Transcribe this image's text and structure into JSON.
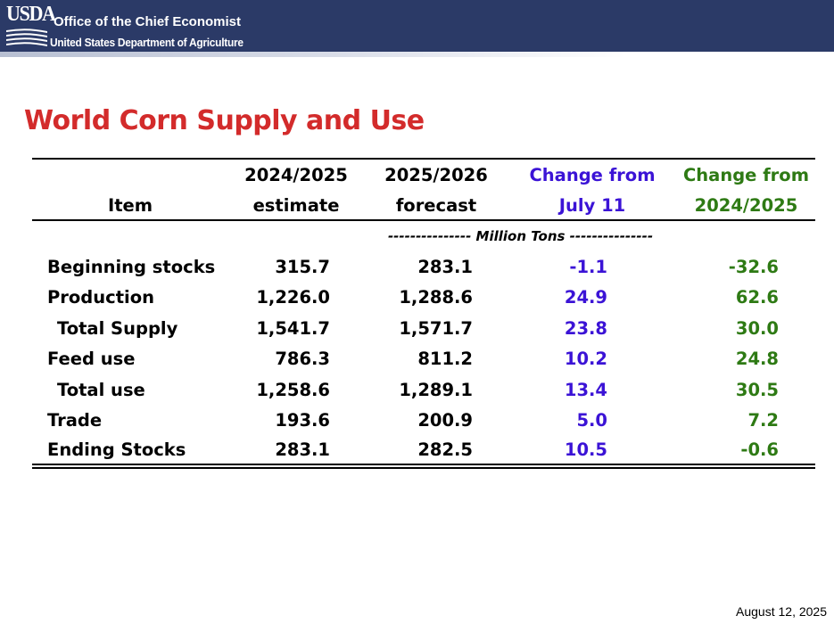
{
  "header": {
    "logo_text": "USDA",
    "office": "Office of the Chief Economist",
    "department": "United States Department of Agriculture",
    "bg_color": "#2b3a67"
  },
  "slide": {
    "title": "World Corn Supply and Use",
    "title_color": "#d32b2b",
    "date": "August 12, 2025"
  },
  "table": {
    "headers": {
      "item": "Item",
      "col1_line1": "2024/2025",
      "col1_line2": "estimate",
      "col2_line1": "2025/2026",
      "col2_line2": "forecast",
      "col3_line1": "Change from",
      "col3_line2": "July 11",
      "col4_line1": "Change from",
      "col4_line2": "2024/2025"
    },
    "units": "--------------- Million Tons ---------------",
    "colors": {
      "change_july": "#3b13d6",
      "change_prior": "#2e7a14"
    },
    "rows": [
      {
        "label": "Beginning stocks",
        "est": "315.7",
        "fcst": "283.1",
        "chg_july": "-1.1",
        "chg_prior": "-32.6"
      },
      {
        "label": "Production",
        "est": "1,226.0",
        "fcst": "1,288.6",
        "chg_july": "24.9",
        "chg_prior": "62.6"
      },
      {
        "label": "Total Supply",
        "est": "1,541.7",
        "fcst": "1,571.7",
        "chg_july": "23.8",
        "chg_prior": "30.0"
      },
      {
        "label": "Feed use",
        "est": "786.3",
        "fcst": "811.2",
        "chg_july": "10.2",
        "chg_prior": "24.8"
      },
      {
        "label": "Total use",
        "est": "1,258.6",
        "fcst": "1,289.1",
        "chg_july": "13.4",
        "chg_prior": "30.5"
      },
      {
        "label": "Trade",
        "est": "193.6",
        "fcst": "200.9",
        "chg_july": "5.0",
        "chg_prior": "7.2"
      },
      {
        "label": "Ending Stocks",
        "est": "283.1",
        "fcst": "282.5",
        "chg_july": "10.5",
        "chg_prior": "-0.6"
      }
    ]
  }
}
